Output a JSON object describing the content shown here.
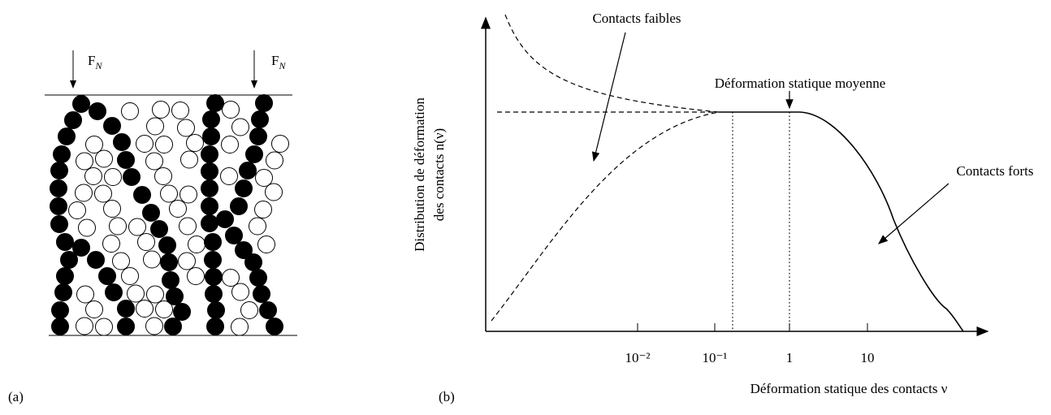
{
  "panel_a": {
    "label": "(a)",
    "forces": [
      {
        "base": "F",
        "sub": "N"
      },
      {
        "base": "F",
        "sub": "N"
      }
    ]
  },
  "panel_b": {
    "label": "(b)",
    "y_axis_label": [
      "Distribution de déformation",
      "des contacts n(ν)"
    ],
    "x_axis_label": "Déformation statique des contacts ν",
    "x_ticks": [
      "10⁻²",
      "10⁻¹",
      "1",
      "10"
    ],
    "annotations": {
      "weak": "Contacts faibles",
      "mean": "Déformation statique moyenne",
      "strong": "Contacts forts"
    }
  }
}
